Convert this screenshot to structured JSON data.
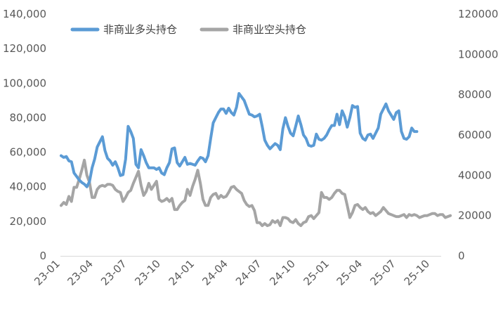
{
  "chart_data": {
    "type": "line",
    "title": "",
    "xlabel": "",
    "ylabel": "",
    "y_left_lim": [
      0,
      140000
    ],
    "y_right_lim": [
      0,
      120000
    ],
    "y_left_ticks": [
      "0",
      "20,000",
      "40,000",
      "60,000",
      "80,000",
      "100,000",
      "120,000",
      "140,000"
    ],
    "y_right_ticks": [
      "0",
      "20000",
      "40000",
      "60000",
      "80000",
      "100000",
      "120000"
    ],
    "x_ticks": [
      "23-01",
      "23-04",
      "23-07",
      "23-10",
      "24-01",
      "24-04",
      "24-07",
      "24-10",
      "25-01",
      "25-04",
      "25-07",
      "25-10"
    ],
    "grid": false,
    "legend_position": "top-left",
    "x_start": "2023-01-03",
    "x_step_days": 7,
    "series": [
      {
        "name": "非商业多头持仓",
        "axis": "left",
        "color": "#5b9bd5",
        "values": [
          58000,
          57000,
          57500,
          55000,
          54500,
          48000,
          46000,
          44000,
          42500,
          41500,
          40000,
          43000,
          51000,
          56000,
          63000,
          66000,
          69000,
          61000,
          56500,
          55000,
          52500,
          54500,
          51000,
          46500,
          47000,
          56000,
          75000,
          72000,
          68000,
          53000,
          51000,
          61500,
          58000,
          54000,
          51000,
          51000,
          51000,
          50000,
          51000,
          48000,
          47000,
          51000,
          54000,
          62000,
          62500,
          54000,
          52000,
          54500,
          57000,
          53000,
          53500,
          53000,
          52500,
          55000,
          57000,
          56500,
          54500,
          58000,
          68000,
          77000,
          80000,
          83000,
          85000,
          85000,
          82500,
          85500,
          83000,
          81500,
          86000,
          94000,
          92000,
          90000,
          86000,
          82000,
          81500,
          80500,
          81000,
          82000,
          75000,
          67000,
          64000,
          62000,
          63500,
          65000,
          64000,
          61500,
          73500,
          80000,
          75000,
          71000,
          69500,
          75000,
          81000,
          76000,
          70000,
          68000,
          64000,
          63500,
          64000,
          70500,
          67500,
          67000,
          68000,
          70000,
          73000,
          75500,
          75500,
          82000,
          76000,
          84000,
          80500,
          74500,
          80000,
          87000,
          86000,
          86500,
          71000,
          68000,
          67000,
          70000,
          70500,
          68000,
          71000,
          74000,
          82000,
          85000,
          88000,
          84000,
          81500,
          79000,
          83000,
          84000,
          72000,
          68000,
          67500,
          69000,
          74000,
          72000,
          72000
        ]
      },
      {
        "name": "非商业空头持仓",
        "axis": "right",
        "color": "#a5a5a5",
        "values": [
          25000,
          26500,
          25500,
          29500,
          27000,
          34000,
          34000,
          38000,
          42500,
          47500,
          40000,
          36500,
          29000,
          29000,
          33000,
          34500,
          35000,
          34500,
          35500,
          35500,
          35000,
          33000,
          32000,
          31500,
          27000,
          29000,
          31500,
          32500,
          36000,
          39000,
          42000,
          35000,
          30000,
          32000,
          36000,
          33000,
          35000,
          37000,
          28000,
          27000,
          27500,
          28500,
          27000,
          28500,
          23000,
          23000,
          25000,
          26500,
          27500,
          33000,
          30000,
          34500,
          38000,
          42500,
          36000,
          28000,
          25000,
          25000,
          29000,
          30500,
          31000,
          28500,
          30000,
          29000,
          29500,
          31500,
          34000,
          34500,
          33000,
          32000,
          31000,
          27500,
          25500,
          24500,
          25000,
          22500,
          16500,
          16500,
          15000,
          16000,
          15000,
          15500,
          17500,
          16500,
          17500,
          15000,
          19000,
          19000,
          18500,
          17000,
          16500,
          18000,
          16000,
          15000,
          16500,
          17000,
          19500,
          20000,
          18500,
          20000,
          21500,
          31500,
          29000,
          29000,
          28000,
          29000,
          31000,
          32500,
          32500,
          31000,
          30500,
          25000,
          19000,
          21500,
          25000,
          25500,
          24000,
          23000,
          24000,
          22000,
          21000,
          21500,
          20000,
          21000,
          22000,
          24000,
          22500,
          21000,
          20500,
          20000,
          19500,
          19500,
          20000,
          20500,
          19000,
          20500,
          20000,
          20500,
          20000,
          19000,
          19500,
          20000,
          20000,
          20500,
          21000,
          21000,
          20000,
          20500,
          20500,
          19000,
          19500,
          20000
        ]
      }
    ]
  }
}
